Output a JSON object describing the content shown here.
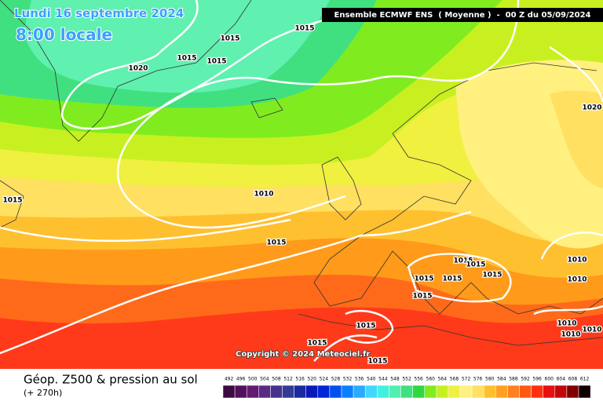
{
  "header": {
    "date": "Lundi 16 septembre 2024",
    "time": "8:00 locale",
    "model": "Ensemble ECMWF ENS  ( Moyenne )  -  00 Z du 05/09/2024"
  },
  "copyright": "Copyright © 2024 Meteociel.fr",
  "caption": {
    "title": "Géop. Z500 & pression au sol",
    "lead": "(+ 270h)"
  },
  "isobars": {
    "labels": [
      "1015",
      "1015",
      "1015",
      "1015",
      "1020",
      "1010",
      "1015",
      "1015",
      "1020",
      "1015",
      "1015",
      "1015",
      "1015",
      "1015",
      "1015",
      "1015",
      "1015",
      "1015",
      "1010",
      "1010",
      "1010",
      "1010",
      "1010"
    ]
  },
  "legend": {
    "steps": [
      {
        "label": 492,
        "color": "#3a0a40"
      },
      {
        "label": 496,
        "color": "#50105a"
      },
      {
        "label": 500,
        "color": "#641a70"
      },
      {
        "label": 504,
        "color": "#5a2a86"
      },
      {
        "label": 508,
        "color": "#46328e"
      },
      {
        "label": 512,
        "color": "#323a96"
      },
      {
        "label": 516,
        "color": "#1c2aa0"
      },
      {
        "label": 520,
        "color": "#0a1ab8"
      },
      {
        "label": 524,
        "color": "#0026d8"
      },
      {
        "label": 528,
        "color": "#0050f0"
      },
      {
        "label": 532,
        "color": "#0a80ff"
      },
      {
        "label": 536,
        "color": "#2aaaff"
      },
      {
        "label": 540,
        "color": "#40d8ff"
      },
      {
        "label": 544,
        "color": "#40f0e0"
      },
      {
        "label": 548,
        "color": "#50f0b0"
      },
      {
        "label": 552,
        "color": "#40e080"
      },
      {
        "label": 556,
        "color": "#30d840"
      },
      {
        "label": 560,
        "color": "#80ec20"
      },
      {
        "label": 564,
        "color": "#c8f020"
      },
      {
        "label": 568,
        "color": "#f0f040"
      },
      {
        "label": 572,
        "color": "#fff080"
      },
      {
        "label": 576,
        "color": "#ffe060"
      },
      {
        "label": 580,
        "color": "#ffc030"
      },
      {
        "label": 584,
        "color": "#ffa020"
      },
      {
        "label": 588,
        "color": "#ff8020"
      },
      {
        "label": 592,
        "color": "#ff5a10"
      },
      {
        "label": 596,
        "color": "#ff3010"
      },
      {
        "label": 600,
        "color": "#e81010"
      },
      {
        "label": 604,
        "color": "#c00808"
      },
      {
        "label": 608,
        "color": "#800000"
      },
      {
        "label": 612,
        "color": "#100000"
      }
    ]
  }
}
